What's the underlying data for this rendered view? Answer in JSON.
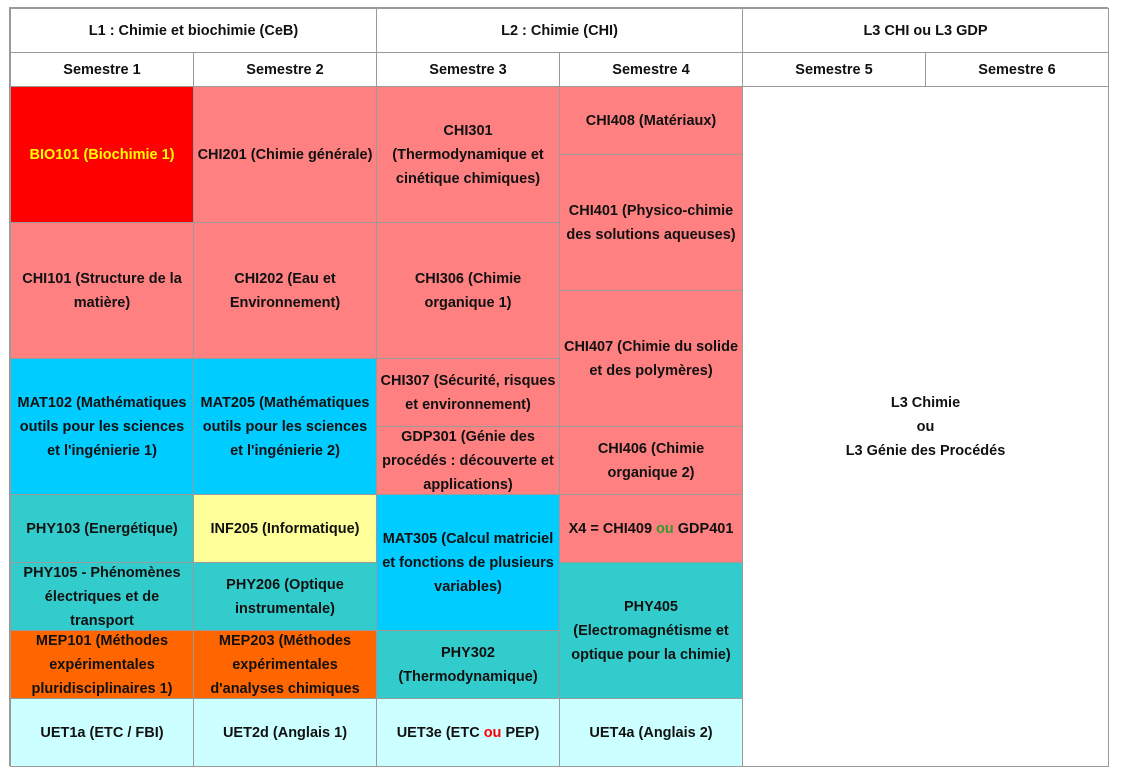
{
  "headers": {
    "l1": "L1 : Chimie et biochimie (CeB)",
    "l2": "L2 : Chimie (CHI)",
    "l3": "L3 CHI ou L3 GDP"
  },
  "semesters": [
    "Semestre 1",
    "Semestre 2",
    "Semestre 3",
    "Semestre 4",
    "Semestre 5",
    "Semestre 6"
  ],
  "s1": {
    "bio101": "BIO101 (Biochimie 1)",
    "chi101": "CHI101 (Structure de la matière)",
    "mat102": "MAT102 (Mathématiques outils pour les sciences et l'ingénierie 1)",
    "phy103": "PHY103 (Energétique)",
    "phy105": "PHY105 - Phénomènes électriques et de transport",
    "mep101": "MEP101 (Méthodes expérimentales pluridisciplinaires 1)",
    "uet1a": "UET1a (ETC / FBI)"
  },
  "s2": {
    "chi201": "CHI201 (Chimie générale)",
    "chi202": "CHI202 (Eau et Environnement)",
    "mat205": "MAT205 (Mathématiques  outils pour les sciences et l'ingénierie 2)",
    "inf205": "INF205 (Informatique)",
    "phy206": "PHY206 (Optique instrumentale)",
    "mep203": "MEP203 (Méthodes expérimentales d'analyses chimiques",
    "uet2d": "UET2d (Anglais 1)"
  },
  "s3": {
    "chi301": "CHI301 (Thermodynamique et cinétique chimiques)",
    "chi306": "CHI306 (Chimie organique 1)",
    "chi307": "CHI307 (Sécurité, risques et environnement)",
    "gdp301": "GDP301 (Génie des procédés : découverte et applications)",
    "mat305": "MAT305 (Calcul matriciel et fonctions de plusieurs variables)",
    "phy302": "PHY302 (Thermodynamique)",
    "uet3e_a": "UET3e (ETC ",
    "uet3e_ou": "ou",
    "uet3e_b": " PEP)"
  },
  "s4": {
    "chi408": "CHI408 (Matériaux)",
    "chi401": "CHI401 (Physico-chimie des solutions aqueuses)",
    "chi407": "CHI407 (Chimie du solide et des polymères)",
    "chi406": "CHI406 (Chimie organique 2)",
    "x4_a": "X4 = CHI409 ",
    "x4_ou": "ou",
    "x4_b": " GDP401",
    "phy405": "PHY405 (Electromagnétisme et optique pour la chimie)",
    "uet4a": "UET4a (Anglais 2)"
  },
  "l3_block": {
    "line1": "L3 Chimie",
    "line2": "ou",
    "line3": "L3 Génie des Procédés"
  },
  "colors": {
    "chemistry": "#ff8080",
    "biology": "#ff0000",
    "mathematics": "#00ccff",
    "physics": "#33cccc",
    "informatics": "#ffff99",
    "methods": "#ff6600",
    "transversal": "#ccffff"
  }
}
